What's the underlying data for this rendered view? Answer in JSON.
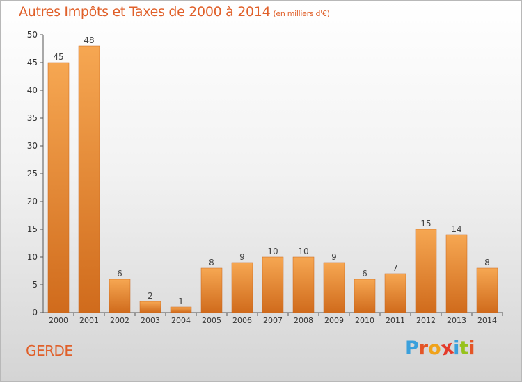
{
  "header": {
    "title": "Autres Impôts et Taxes de 2000 à 2014",
    "unit": "(en milliers d'€)"
  },
  "footer": {
    "place": "GERDE",
    "logo_text": "Proxiti"
  },
  "colors": {
    "title": "#e0602a",
    "bar_light": "#f6a752",
    "bar_dark": "#d06b1c",
    "axis": "#555555",
    "logo": [
      "#3aa0dc",
      "#e45526",
      "#f0a21a",
      "#e43a2a",
      "#3aa0dc",
      "#96c21c",
      "#e45526"
    ]
  },
  "chart_data": {
    "type": "bar",
    "categories": [
      "2000",
      "2001",
      "2002",
      "2003",
      "2004",
      "2005",
      "2006",
      "2007",
      "2008",
      "2009",
      "2010",
      "2011",
      "2012",
      "2013",
      "2014"
    ],
    "values": [
      45,
      48,
      6,
      2,
      1,
      8,
      9,
      10,
      10,
      9,
      6,
      7,
      15,
      14,
      8
    ],
    "data_labels": [
      "45",
      "48",
      "6",
      "2",
      "1",
      "8",
      "9",
      "10",
      "10",
      "9",
      "6",
      "7",
      "15",
      "14",
      "8"
    ],
    "ylim": [
      0,
      50
    ],
    "yticks": [
      0,
      5,
      10,
      15,
      20,
      25,
      30,
      35,
      40,
      45,
      50
    ],
    "grid": false,
    "legend": "none"
  }
}
